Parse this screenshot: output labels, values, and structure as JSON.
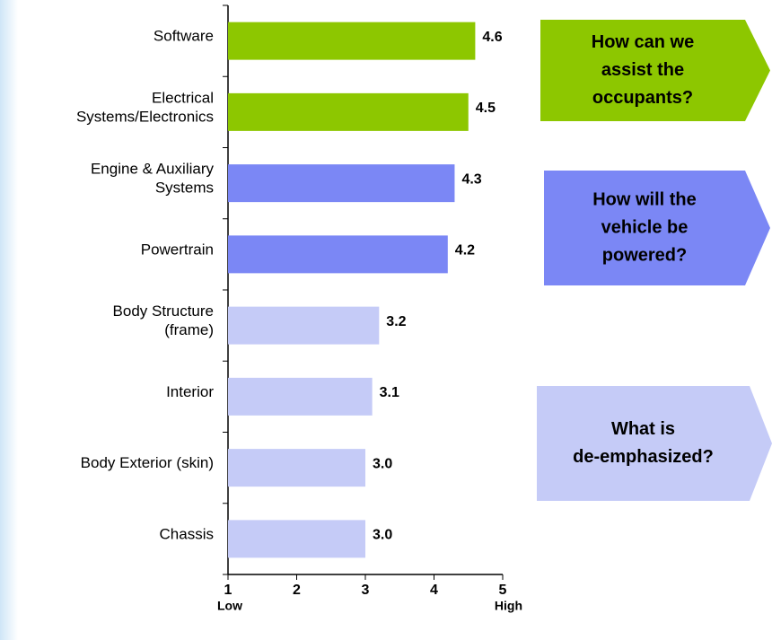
{
  "chart_data": {
    "type": "barh",
    "categories": [
      "Software",
      "Electrical\nSystems/Electronics",
      "Engine & Auxiliary\nSystems",
      "Powertrain",
      "Body Structure\n(frame)",
      "Interior",
      "Body Exterior (skin)",
      "Chassis"
    ],
    "values": [
      4.6,
      4.5,
      4.3,
      4.2,
      3.2,
      3.1,
      3.0,
      3.0
    ],
    "value_labels": [
      "4.6",
      "4.5",
      "4.3",
      "4.2",
      "3.2",
      "3.1",
      "3.0",
      "3.0"
    ],
    "colors": [
      "#8dc700",
      "#8dc700",
      "#7b87f5",
      "#7b87f5",
      "#c5cbf7",
      "#c5cbf7",
      "#c5cbf7",
      "#c5cbf7"
    ],
    "xlim": [
      1,
      5
    ],
    "xticks": [
      1,
      2,
      3,
      4,
      5
    ],
    "xtick_sublabels": {
      "low": "Low",
      "high": "High"
    },
    "annotations": [
      {
        "lines": [
          "How can we",
          "assist the",
          "occupants?"
        ],
        "color": "#8dc700",
        "text_color": "#ffffff"
      },
      {
        "lines": [
          "How will the",
          "vehicle be",
          "powered?"
        ],
        "color": "#7b87f5",
        "text_color": "#ffffff"
      },
      {
        "lines": [
          "What is",
          "de-emphasized?"
        ],
        "color": "#c5cbf7",
        "text_color": "#000000"
      }
    ]
  }
}
